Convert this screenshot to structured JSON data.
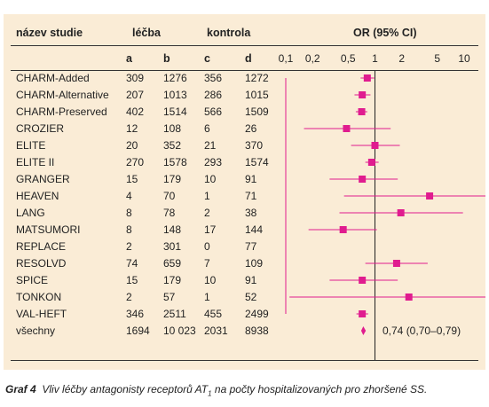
{
  "header": {
    "study": "název studie",
    "treatment": "léčba",
    "control": "kontrola",
    "or_label": "OR (95% CI)"
  },
  "columns": [
    "a",
    "b",
    "c",
    "d"
  ],
  "caption": {
    "prefix": "Graf 4",
    "text_before_sub": "Vliv léčby antagonisty receptorů AT",
    "sub": "1",
    "text_after_sub": " na počty hospitalizovaných pro zhoršené SS."
  },
  "chart_data": {
    "type": "forest",
    "scale": "log",
    "xlim": [
      0.1,
      10
    ],
    "xticks": [
      0.1,
      0.2,
      0.5,
      1,
      2,
      5,
      10
    ],
    "xtick_labels": [
      "0,1",
      "0,2",
      "0,5",
      "1",
      "2",
      "5",
      "10"
    ],
    "reference_line": 1,
    "colors": {
      "marker": "#e01c8f",
      "panel": "#faecd6",
      "text": "#222222"
    },
    "rows": [
      {
        "study": "CHARM-Added",
        "a": "309",
        "b": "1276",
        "c": "356",
        "d": "1272",
        "or": 0.82,
        "lo": 0.69,
        "hi": 0.98
      },
      {
        "study": "CHARM-Alternative",
        "a": "207",
        "b": "1013",
        "c": "286",
        "d": "1015",
        "or": 0.72,
        "lo": 0.59,
        "hi": 0.89
      },
      {
        "study": "CHARM-Preserved",
        "a": "402",
        "b": "1514",
        "c": "566",
        "d": "1509",
        "or": 0.71,
        "lo": 0.61,
        "hi": 0.82
      },
      {
        "study": "CROZIER",
        "a": "12",
        "b": "108",
        "c": "6",
        "d": "26",
        "or": 0.48,
        "lo": 0.16,
        "hi": 1.5
      },
      {
        "study": "ELITE",
        "a": "20",
        "b": "352",
        "c": "21",
        "d": "370",
        "or": 1.0,
        "lo": 0.54,
        "hi": 1.9
      },
      {
        "study": "ELITE II",
        "a": "270",
        "b": "1578",
        "c": "293",
        "d": "1574",
        "or": 0.92,
        "lo": 0.78,
        "hi": 1.1
      },
      {
        "study": "GRANGER",
        "a": "15",
        "b": "179",
        "c": "10",
        "d": "91",
        "or": 0.72,
        "lo": 0.31,
        "hi": 1.8
      },
      {
        "study": "HEAVEN",
        "a": "4",
        "b": "70",
        "c": "1",
        "d": "71",
        "or": 4.1,
        "lo": 0.45,
        "hi": 38
      },
      {
        "study": "LANG",
        "a": "8",
        "b": "78",
        "c": "2",
        "d": "38",
        "or": 1.95,
        "lo": 0.4,
        "hi": 9.7
      },
      {
        "study": "MATSUMORI",
        "a": "8",
        "b": "148",
        "c": "17",
        "d": "144",
        "or": 0.44,
        "lo": 0.18,
        "hi": 1.05
      },
      {
        "study": "REPLACE",
        "a": "2",
        "b": "301",
        "c": "0",
        "d": "77"
      },
      {
        "study": "RESOLVD",
        "a": "74",
        "b": "659",
        "c": "7",
        "d": "109",
        "or": 1.75,
        "lo": 0.78,
        "hi": 3.9
      },
      {
        "study": "SPICE",
        "a": "15",
        "b": "179",
        "c": "10",
        "d": "91",
        "or": 0.72,
        "lo": 0.31,
        "hi": 1.8
      },
      {
        "study": "TONKON",
        "a": "2",
        "b": "57",
        "c": "1",
        "d": "52",
        "or": 2.4,
        "lo": 0.11,
        "hi": 40
      },
      {
        "study": "VAL-HEFT",
        "a": "346",
        "b": "2511",
        "c": "455",
        "d": "2499",
        "or": 0.72,
        "lo": 0.62,
        "hi": 0.84
      }
    ],
    "summary": {
      "study": "všechny",
      "a": "1694",
      "b": "10 023",
      "c": "2031",
      "d": "8938",
      "or": 0.74,
      "lo": 0.7,
      "hi": 0.79,
      "label": "0,74 (0,70–0,79)"
    }
  }
}
